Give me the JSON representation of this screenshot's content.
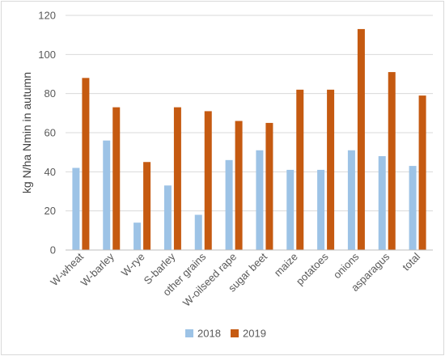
{
  "chart_data": {
    "type": "bar",
    "title": "",
    "xlabel": "",
    "ylabel": "kg N/ha Nmin in autumn",
    "ylim": [
      0,
      120
    ],
    "yticks": [
      0,
      20,
      40,
      60,
      80,
      100,
      120
    ],
    "grid": "horizontal",
    "legend_position": "bottom",
    "categories": [
      "W-wheat",
      "W-barley",
      "W-rye",
      "S-barley",
      "other grains",
      "W-oilseed rape",
      "sugar beet",
      "maize",
      "potatoes",
      "onions",
      "asparagus",
      "total"
    ],
    "series": [
      {
        "name": "2018",
        "color": "#9dc3e6",
        "values": [
          42,
          56,
          14,
          33,
          18,
          46,
          51,
          41,
          41,
          51,
          48,
          43
        ]
      },
      {
        "name": "2019",
        "color": "#c55a11",
        "values": [
          88,
          73,
          45,
          73,
          71,
          66,
          65,
          82,
          82,
          113,
          91,
          79
        ]
      }
    ]
  }
}
